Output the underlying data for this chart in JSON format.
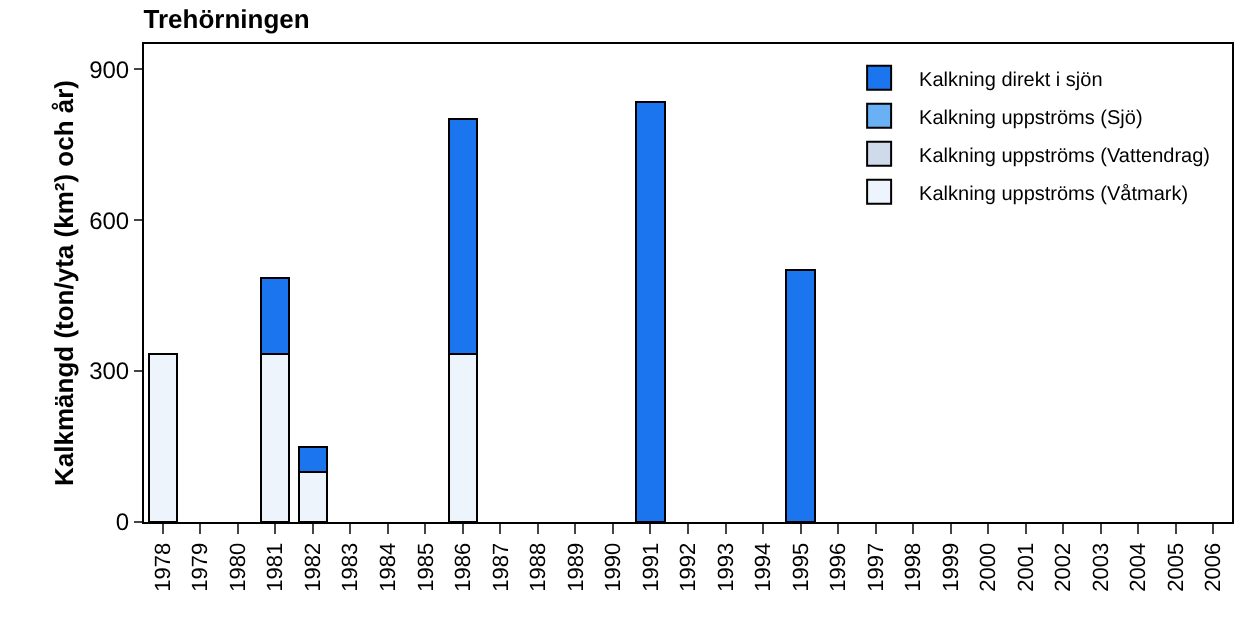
{
  "chart_data": {
    "type": "bar",
    "title": "Trehörningen",
    "ylabel": "Kalkmängd (ton/yta (km²) och år)",
    "categories": [
      "1978",
      "1979",
      "1980",
      "1981",
      "1982",
      "1983",
      "1984",
      "1985",
      "1986",
      "1987",
      "1988",
      "1989",
      "1990",
      "1991",
      "1992",
      "1993",
      "1994",
      "1995",
      "1996",
      "1997",
      "1998",
      "1999",
      "2000",
      "2001",
      "2002",
      "2003",
      "2004",
      "2005",
      "2006"
    ],
    "stacked": true,
    "ylim": [
      0,
      950
    ],
    "yticks": [
      0,
      300,
      600,
      900
    ],
    "grid": false,
    "legend": "top right",
    "series": [
      {
        "name": "Kalkning uppströms (Våtmark)",
        "color": "#eef4fb",
        "values": [
          333,
          null,
          null,
          333,
          100,
          null,
          null,
          null,
          333,
          null,
          null,
          null,
          null,
          null,
          null,
          null,
          null,
          null,
          null,
          null,
          null,
          null,
          null,
          null,
          null,
          null,
          null,
          null,
          null
        ]
      },
      {
        "name": "Kalkning uppströms (Vattendrag)",
        "color": "#cfdbea",
        "values": [
          null,
          null,
          null,
          null,
          null,
          null,
          null,
          null,
          null,
          null,
          null,
          null,
          null,
          null,
          null,
          null,
          null,
          null,
          null,
          null,
          null,
          null,
          null,
          null,
          null,
          null,
          null,
          null,
          null
        ]
      },
      {
        "name": "Kalkning uppströms (Sjö)",
        "color": "#6ab0f5",
        "values": [
          null,
          null,
          null,
          null,
          null,
          null,
          null,
          null,
          null,
          null,
          null,
          null,
          null,
          null,
          null,
          null,
          null,
          null,
          null,
          null,
          null,
          null,
          null,
          null,
          null,
          null,
          null,
          null,
          null
        ]
      },
      {
        "name": "Kalkning direkt i sjön",
        "color": "#1a75ee",
        "values": [
          null,
          null,
          null,
          152,
          50,
          null,
          null,
          null,
          467,
          null,
          null,
          null,
          null,
          835,
          null,
          null,
          null,
          500,
          null,
          null,
          null,
          null,
          null,
          null,
          null,
          null,
          null,
          null,
          null
        ]
      }
    ]
  }
}
